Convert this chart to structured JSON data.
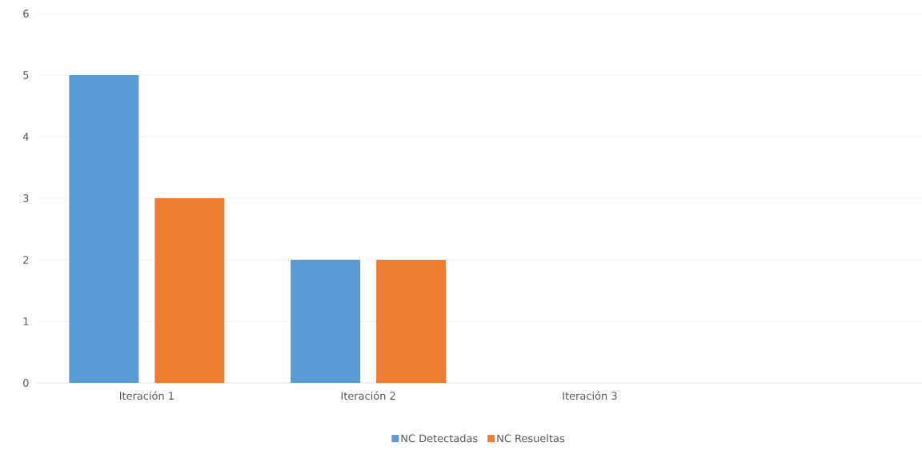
{
  "chart_data": {
    "type": "bar",
    "categories": [
      "Iteración 1",
      "Iteración 2",
      "Iteración 3",
      null
    ],
    "series": [
      {
        "name": "NC Detectadas",
        "color": "#5b9bd5",
        "values": [
          5,
          2,
          null,
          null
        ]
      },
      {
        "name": "NC Resueltas",
        "color": "#ed7d31",
        "values": [
          3,
          2,
          null,
          null
        ]
      }
    ],
    "ylim": [
      0,
      6
    ],
    "yticks": [
      0,
      1,
      2,
      3,
      4,
      5,
      6
    ],
    "grid": "y",
    "legend": "bottom"
  }
}
